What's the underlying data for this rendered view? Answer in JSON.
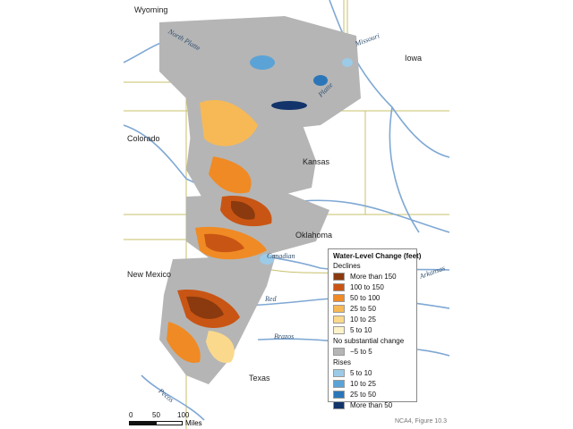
{
  "map": {
    "states": [
      "Wyoming",
      "Iowa",
      "Colorado",
      "Kansas",
      "Oklahoma",
      "New Mexico",
      "Texas"
    ],
    "rivers": [
      "North Platte",
      "Missouri",
      "Platte",
      "Canadian",
      "Arkansas",
      "Red",
      "Brazos",
      "Pecos"
    ]
  },
  "legend": {
    "title": "Water-Level Change (feet)",
    "declines_label": "Declines",
    "declines": [
      {
        "label": "More than 150",
        "color": "#8a3a0e"
      },
      {
        "label": "100 to 150",
        "color": "#c95514"
      },
      {
        "label": "50 to 100",
        "color": "#f08a24"
      },
      {
        "label": "25 to 50",
        "color": "#f7b955"
      },
      {
        "label": "10 to 25",
        "color": "#fbd98c"
      },
      {
        "label": "5 to 10",
        "color": "#fdf2c8"
      }
    ],
    "no_change_label": "No substantial change",
    "no_change": {
      "label": "−5 to 5",
      "color": "#b5b5b5"
    },
    "rises_label": "Rises",
    "rises": [
      {
        "label": "5 to 10",
        "color": "#9ccbe8"
      },
      {
        "label": "10 to 25",
        "color": "#5ba3d6"
      },
      {
        "label": "25 to 50",
        "color": "#2b76b9"
      },
      {
        "label": "More than 50",
        "color": "#12346a"
      }
    ]
  },
  "scale": {
    "ticks": [
      "0",
      "50",
      "100"
    ],
    "unit": "Miles"
  },
  "caption": "NCA4, Figure 10.3",
  "colors": {
    "river": "#7fa8d4",
    "border": "#c8c06a",
    "background": "#ffffff"
  }
}
